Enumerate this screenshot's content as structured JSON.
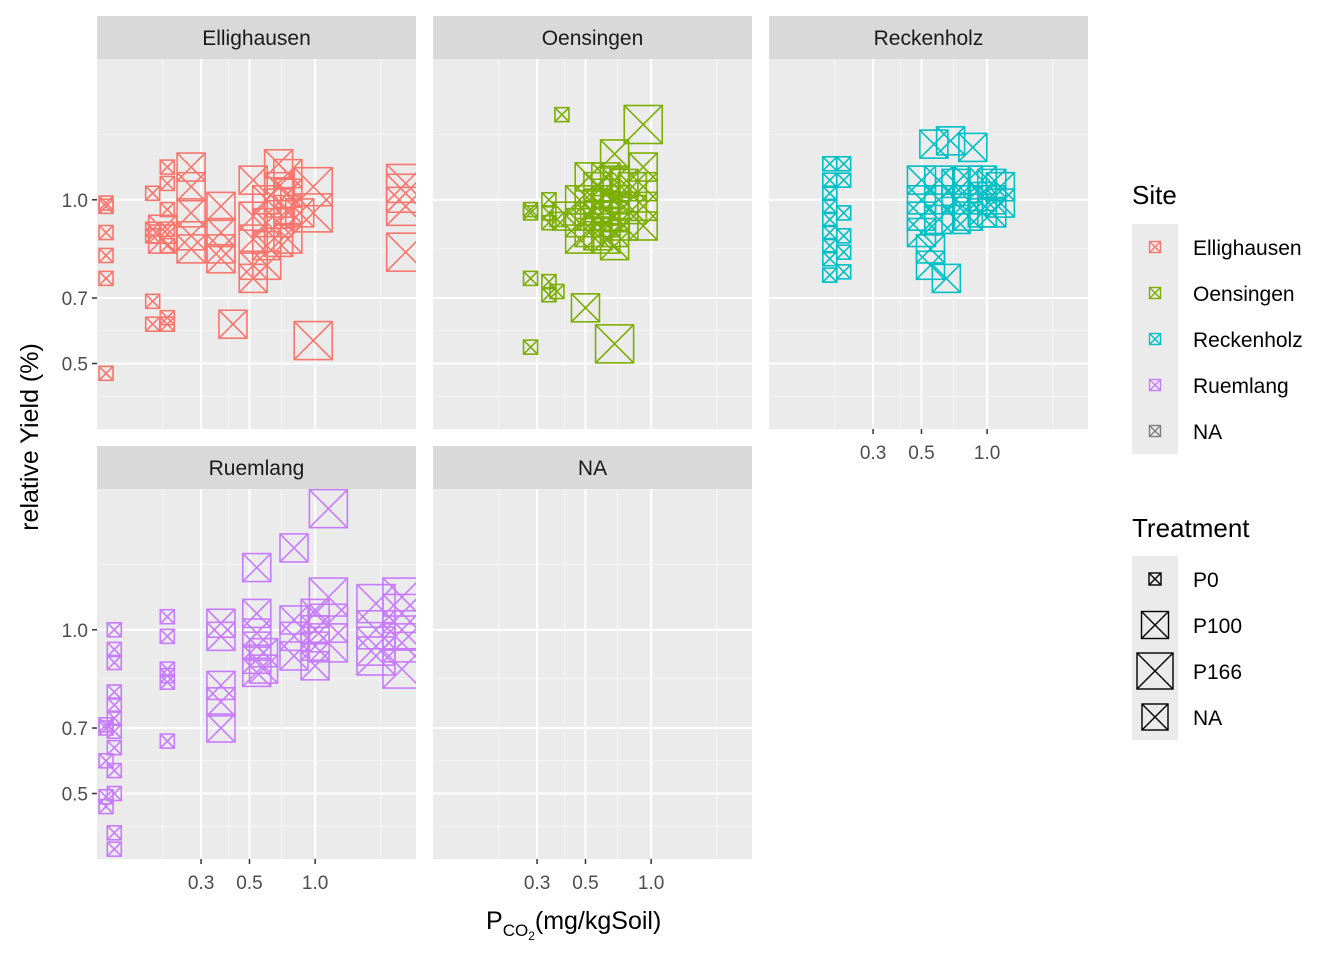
{
  "chart_data": {
    "type": "scatter",
    "ylabel": "relative Yield (%)",
    "xlabel": {
      "base": "P",
      "sub": "CO",
      "subsub": "2",
      "rest": "(mg/kgSoil)"
    },
    "x_scale": "log10",
    "xlim": [
      0.1,
      2.9
    ],
    "ylim": [
      0.3,
      1.43
    ],
    "x_ticks": [
      0.3,
      0.5,
      1.0
    ],
    "x_tick_labels": [
      "0.3",
      "0.5",
      "1.0"
    ],
    "y_ticks": [
      0.5,
      0.7,
      1.0
    ],
    "y_tick_labels": [
      "0.5",
      "0.7",
      "1.0"
    ],
    "colors": {
      "Ellighausen": "#F8766D",
      "Oensingen": "#7CAE00",
      "Reckenholz": "#00BFC4",
      "Ruemlang": "#C77CFF",
      "NA": "#7F7F7F"
    },
    "marker_sizes": {
      "P0": 14,
      "P100": 28,
      "P166": 38,
      "NA": 26
    },
    "facets": [
      {
        "name": "Ellighausen",
        "points": [
          [
            0.11,
            0.99,
            "P0"
          ],
          [
            0.11,
            0.98,
            "P0"
          ],
          [
            0.11,
            0.9,
            "P0"
          ],
          [
            0.11,
            0.83,
            "P0"
          ],
          [
            0.11,
            0.76,
            "P0"
          ],
          [
            0.11,
            0.47,
            "P0"
          ],
          [
            0.18,
            0.89,
            "P0"
          ],
          [
            0.18,
            0.69,
            "P0"
          ],
          [
            0.18,
            0.62,
            "P0"
          ],
          [
            0.18,
            0.91,
            "P0"
          ],
          [
            0.18,
            1.02,
            "P0"
          ],
          [
            0.21,
            0.64,
            "P0"
          ],
          [
            0.21,
            0.62,
            "P0"
          ],
          [
            0.21,
            1.1,
            "P0"
          ],
          [
            0.21,
            1.05,
            "P0"
          ],
          [
            0.21,
            0.97,
            "P0"
          ],
          [
            0.21,
            0.91,
            "P0"
          ],
          [
            0.21,
            0.86,
            "P0"
          ],
          [
            0.2,
            0.91,
            "P100"
          ],
          [
            0.2,
            0.88,
            "P100"
          ],
          [
            0.27,
            1.1,
            "P100"
          ],
          [
            0.27,
            1.04,
            "P100"
          ],
          [
            0.27,
            0.96,
            "P100"
          ],
          [
            0.27,
            0.89,
            "P100"
          ],
          [
            0.27,
            0.85,
            "P100"
          ],
          [
            0.37,
            0.98,
            "P100"
          ],
          [
            0.37,
            0.9,
            "P100"
          ],
          [
            0.37,
            0.85,
            "P100"
          ],
          [
            0.37,
            0.82,
            "P100"
          ],
          [
            0.42,
            0.62,
            "P100"
          ],
          [
            0.52,
            1.06,
            "P100"
          ],
          [
            0.52,
            0.95,
            "P100"
          ],
          [
            0.52,
            0.88,
            "P100"
          ],
          [
            0.52,
            0.8,
            "P100"
          ],
          [
            0.52,
            0.76,
            "P100"
          ],
          [
            0.6,
            1.0,
            "P100"
          ],
          [
            0.6,
            0.93,
            "P100"
          ],
          [
            0.6,
            0.86,
            "P100"
          ],
          [
            0.6,
            0.8,
            "P100"
          ],
          [
            0.68,
            1.11,
            "P100"
          ],
          [
            0.68,
            1.04,
            "P100"
          ],
          [
            0.68,
            0.99,
            "P100"
          ],
          [
            0.68,
            0.93,
            "P100"
          ],
          [
            0.68,
            0.87,
            "P100"
          ],
          [
            0.75,
            1.08,
            "P100"
          ],
          [
            0.75,
            1.02,
            "P100"
          ],
          [
            0.75,
            0.97,
            "P100"
          ],
          [
            0.75,
            0.88,
            "P100"
          ],
          [
            0.85,
            0.96,
            "P100"
          ],
          [
            0.98,
            1.04,
            "P166"
          ],
          [
            0.98,
            0.96,
            "P166"
          ],
          [
            0.98,
            0.57,
            "P166"
          ],
          [
            2.6,
            1.05,
            "P166"
          ],
          [
            2.6,
            1.02,
            "P166"
          ],
          [
            2.6,
            0.98,
            "P166"
          ],
          [
            2.6,
            0.84,
            "P166"
          ]
        ]
      },
      {
        "name": "Oensingen",
        "points": [
          [
            0.28,
            0.97,
            "P0"
          ],
          [
            0.28,
            0.96,
            "P0"
          ],
          [
            0.28,
            0.76,
            "P0"
          ],
          [
            0.28,
            0.55,
            "P0"
          ],
          [
            0.34,
            1.0,
            "P0"
          ],
          [
            0.34,
            0.96,
            "P0"
          ],
          [
            0.34,
            0.93,
            "P0"
          ],
          [
            0.34,
            0.71,
            "P0"
          ],
          [
            0.34,
            0.75,
            "P0"
          ],
          [
            0.37,
            0.72,
            "P0"
          ],
          [
            0.37,
            0.94,
            "P0"
          ],
          [
            0.39,
            1.26,
            "P0"
          ],
          [
            0.41,
            0.95,
            "P100"
          ],
          [
            0.47,
            1.0,
            "P100"
          ],
          [
            0.47,
            0.93,
            "P100"
          ],
          [
            0.47,
            0.88,
            "P100"
          ],
          [
            0.5,
            0.67,
            "P100"
          ],
          [
            0.52,
            1.07,
            "P100"
          ],
          [
            0.52,
            1.0,
            "P100"
          ],
          [
            0.52,
            0.95,
            "P100"
          ],
          [
            0.52,
            0.9,
            "P100"
          ],
          [
            0.57,
            1.04,
            "P100"
          ],
          [
            0.57,
            0.99,
            "P100"
          ],
          [
            0.57,
            0.95,
            "P100"
          ],
          [
            0.57,
            0.89,
            "P100"
          ],
          [
            0.62,
            1.07,
            "P100"
          ],
          [
            0.62,
            1.02,
            "P100"
          ],
          [
            0.62,
            0.97,
            "P100"
          ],
          [
            0.62,
            0.93,
            "P100"
          ],
          [
            0.62,
            0.88,
            "P100"
          ],
          [
            0.68,
            1.14,
            "P100"
          ],
          [
            0.68,
            1.06,
            "P100"
          ],
          [
            0.68,
            1.0,
            "P100"
          ],
          [
            0.68,
            0.95,
            "P100"
          ],
          [
            0.68,
            0.9,
            "P100"
          ],
          [
            0.68,
            0.86,
            "P100"
          ],
          [
            0.75,
            1.05,
            "P100"
          ],
          [
            0.75,
            0.98,
            "P100"
          ],
          [
            0.75,
            0.92,
            "P100"
          ],
          [
            0.82,
            1.04,
            "P100"
          ],
          [
            0.82,
            0.97,
            "P100"
          ],
          [
            0.92,
            1.1,
            "P100"
          ],
          [
            0.92,
            1.04,
            "P100"
          ],
          [
            0.92,
            0.98,
            "P100"
          ],
          [
            0.92,
            0.92,
            "P100"
          ],
          [
            0.68,
            0.56,
            "P166"
          ],
          [
            0.92,
            1.23,
            "P166"
          ]
        ]
      },
      {
        "name": "Reckenholz",
        "points": [
          [
            0.19,
            1.11,
            "P0"
          ],
          [
            0.19,
            1.06,
            "P0"
          ],
          [
            0.19,
            1.02,
            "P0"
          ],
          [
            0.19,
            0.98,
            "P0"
          ],
          [
            0.19,
            0.94,
            "P0"
          ],
          [
            0.19,
            0.9,
            "P0"
          ],
          [
            0.19,
            0.86,
            "P0"
          ],
          [
            0.19,
            0.82,
            "P0"
          ],
          [
            0.19,
            0.77,
            "P0"
          ],
          [
            0.22,
            1.11,
            "P0"
          ],
          [
            0.22,
            1.06,
            "P0"
          ],
          [
            0.22,
            0.96,
            "P0"
          ],
          [
            0.22,
            0.89,
            "P0"
          ],
          [
            0.22,
            0.84,
            "P0"
          ],
          [
            0.22,
            0.78,
            "P0"
          ],
          [
            0.5,
            1.06,
            "P100"
          ],
          [
            0.5,
            1.0,
            "P100"
          ],
          [
            0.5,
            0.95,
            "P100"
          ],
          [
            0.5,
            0.9,
            "P100"
          ],
          [
            0.55,
            0.85,
            "P100"
          ],
          [
            0.55,
            0.8,
            "P100"
          ],
          [
            0.57,
            1.17,
            "P100"
          ],
          [
            0.6,
            1.06,
            "P100"
          ],
          [
            0.6,
            1.0,
            "P100"
          ],
          [
            0.6,
            0.94,
            "P100"
          ],
          [
            0.65,
            0.76,
            "P100"
          ],
          [
            0.68,
            1.18,
            "P100"
          ],
          [
            0.72,
            1.05,
            "P100"
          ],
          [
            0.72,
            1.0,
            "P100"
          ],
          [
            0.72,
            0.94,
            "P100"
          ],
          [
            0.82,
            1.06,
            "P100"
          ],
          [
            0.82,
            1.0,
            "P100"
          ],
          [
            0.82,
            0.95,
            "P100"
          ],
          [
            0.86,
            1.16,
            "P100"
          ],
          [
            0.95,
            1.06,
            "P100"
          ],
          [
            0.95,
            1.01,
            "P100"
          ],
          [
            0.95,
            0.96,
            "P100"
          ],
          [
            1.05,
            1.05,
            "P100"
          ],
          [
            1.05,
            1.0,
            "P100"
          ],
          [
            1.05,
            0.96,
            "P100"
          ],
          [
            1.15,
            1.04,
            "P100"
          ],
          [
            1.15,
            0.99,
            "P100"
          ]
        ]
      },
      {
        "name": "Ruemlang",
        "points": [
          [
            0.11,
            0.71,
            "P0"
          ],
          [
            0.11,
            0.7,
            "P0"
          ],
          [
            0.11,
            0.6,
            "P0"
          ],
          [
            0.11,
            0.49,
            "P0"
          ],
          [
            0.11,
            0.46,
            "P0"
          ],
          [
            0.12,
            1.0,
            "P0"
          ],
          [
            0.12,
            0.94,
            "P0"
          ],
          [
            0.12,
            0.9,
            "P0"
          ],
          [
            0.12,
            0.81,
            "P0"
          ],
          [
            0.12,
            0.77,
            "P0"
          ],
          [
            0.12,
            0.73,
            "P0"
          ],
          [
            0.12,
            0.69,
            "P0"
          ],
          [
            0.12,
            0.64,
            "P0"
          ],
          [
            0.12,
            0.57,
            "P0"
          ],
          [
            0.12,
            0.5,
            "P0"
          ],
          [
            0.12,
            0.38,
            "P0"
          ],
          [
            0.12,
            0.33,
            "P0"
          ],
          [
            0.21,
            1.04,
            "P0"
          ],
          [
            0.21,
            0.98,
            "P0"
          ],
          [
            0.21,
            0.88,
            "P0"
          ],
          [
            0.21,
            0.86,
            "P0"
          ],
          [
            0.21,
            0.84,
            "P0"
          ],
          [
            0.21,
            0.66,
            "P0"
          ],
          [
            0.37,
            1.02,
            "P100"
          ],
          [
            0.37,
            0.98,
            "P100"
          ],
          [
            0.37,
            0.83,
            "P100"
          ],
          [
            0.37,
            0.78,
            "P100"
          ],
          [
            0.37,
            0.7,
            "P100"
          ],
          [
            0.54,
            1.19,
            "P100"
          ],
          [
            0.54,
            1.05,
            "P100"
          ],
          [
            0.54,
            0.99,
            "P100"
          ],
          [
            0.54,
            0.95,
            "P100"
          ],
          [
            0.54,
            0.91,
            "P100"
          ],
          [
            0.54,
            0.87,
            "P100"
          ],
          [
            0.58,
            0.93,
            "P100"
          ],
          [
            0.58,
            0.88,
            "P100"
          ],
          [
            0.8,
            1.03,
            "P100"
          ],
          [
            0.8,
            0.98,
            "P100"
          ],
          [
            0.8,
            0.92,
            "P100"
          ],
          [
            0.8,
            1.25,
            "P100"
          ],
          [
            1.0,
            1.05,
            "P100"
          ],
          [
            1.0,
            1.0,
            "P100"
          ],
          [
            1.0,
            0.95,
            "P100"
          ],
          [
            1.0,
            0.89,
            "P100"
          ],
          [
            1.15,
            1.37,
            "P166"
          ],
          [
            1.15,
            1.1,
            "P166"
          ],
          [
            1.15,
            1.02,
            "P166"
          ],
          [
            1.15,
            0.96,
            "P166"
          ],
          [
            1.9,
            1.08,
            "P166"
          ],
          [
            1.9,
            1.0,
            "P166"
          ],
          [
            1.9,
            0.95,
            "P166"
          ],
          [
            1.9,
            0.92,
            "P166"
          ],
          [
            2.5,
            1.1,
            "P166"
          ],
          [
            2.5,
            1.05,
            "P166"
          ],
          [
            2.5,
            1.0,
            "P166"
          ],
          [
            2.5,
            0.96,
            "P166"
          ],
          [
            2.5,
            0.88,
            "P166"
          ]
        ]
      },
      {
        "name": "NA",
        "points": []
      }
    ],
    "legend": {
      "site": {
        "title": "Site",
        "entries": [
          "Ellighausen",
          "Oensingen",
          "Reckenholz",
          "Ruemlang",
          "NA"
        ]
      },
      "treatment": {
        "title": "Treatment",
        "entries": [
          "P0",
          "P100",
          "P166",
          "NA"
        ]
      }
    }
  }
}
